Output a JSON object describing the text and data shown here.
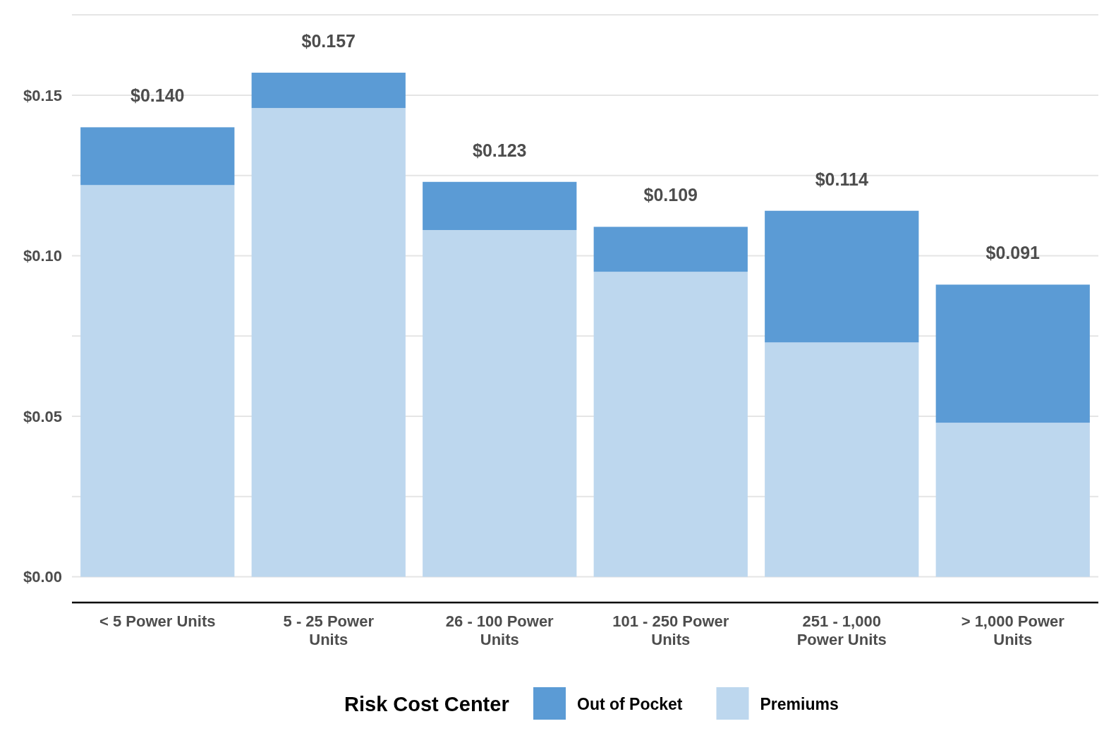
{
  "chart_data": {
    "type": "bar",
    "stacked": true,
    "categories": [
      "< 5 Power Units",
      "5 - 25 Power Units",
      "26 - 100 Power Units",
      "101 - 250 Power Units",
      "251 - 1,000 Power Units",
      "> 1,000 Power Units"
    ],
    "series": [
      {
        "name": "Premiums",
        "color": "#bdd7ee",
        "values": [
          0.122,
          0.146,
          0.108,
          0.095,
          0.073,
          0.048
        ]
      },
      {
        "name": "Out of Pocket",
        "color": "#5b9bd5",
        "values": [
          0.018,
          0.011,
          0.015,
          0.014,
          0.041,
          0.043
        ]
      }
    ],
    "totals": [
      "$0.140",
      "$0.157",
      "$0.123",
      "$0.109",
      "$0.114",
      "$0.091"
    ],
    "ylim": [
      -0.008,
      0.177
    ],
    "yticks": [
      {
        "value": 0,
        "label": "$0.00"
      },
      {
        "value": 0.025,
        "label": null
      },
      {
        "value": 0.05,
        "label": "$0.05"
      },
      {
        "value": 0.075,
        "label": null
      },
      {
        "value": 0.1,
        "label": "$0.10"
      },
      {
        "value": 0.125,
        "label": null
      },
      {
        "value": 0.15,
        "label": "$0.15"
      },
      {
        "value": 0.175,
        "label": null
      }
    ],
    "grid": "y",
    "legend": "bottom",
    "legend_title": "Risk Cost Center"
  }
}
